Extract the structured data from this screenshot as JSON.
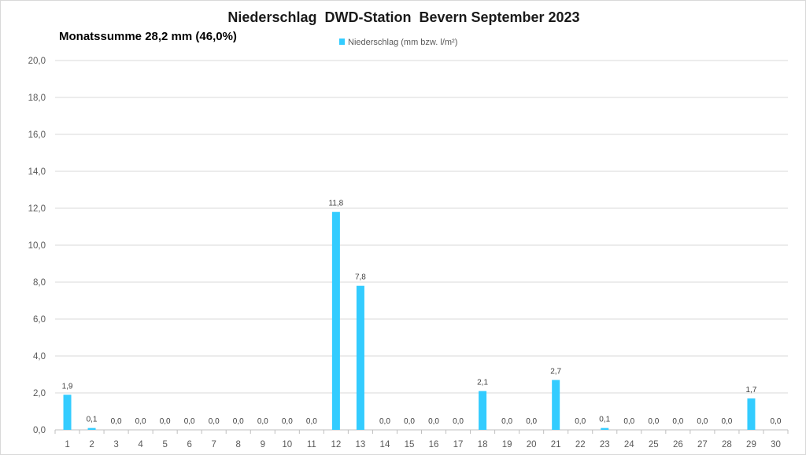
{
  "chart_data": {
    "type": "bar",
    "title": "Niederschlag  DWD-Station  Bevern September 2023",
    "subtitle": "Monatssumme 28,2 mm (46,0%)",
    "legend": {
      "position": "top",
      "entries": [
        "Niederschlag (mm bzw. l/m²)"
      ]
    },
    "series": [
      {
        "name": "Niederschlag (mm bzw. l/m²)",
        "color": "#33ccff",
        "values": [
          1.9,
          0.1,
          0.0,
          0.0,
          0.0,
          0.0,
          0.0,
          0.0,
          0.0,
          0.0,
          0.0,
          11.8,
          7.8,
          0.0,
          0.0,
          0.0,
          0.0,
          2.1,
          0.0,
          0.0,
          2.7,
          0.0,
          0.1,
          0.0,
          0.0,
          0.0,
          0.0,
          0.0,
          1.7,
          0.0
        ]
      }
    ],
    "categories": [
      "1",
      "2",
      "3",
      "4",
      "5",
      "6",
      "7",
      "8",
      "9",
      "10",
      "11",
      "12",
      "13",
      "14",
      "15",
      "16",
      "17",
      "18",
      "19",
      "20",
      "21",
      "22",
      "23",
      "24",
      "25",
      "26",
      "27",
      "28",
      "29",
      "30"
    ],
    "ylim": [
      0,
      20
    ],
    "yticks": [
      "0,0",
      "2,0",
      "4,0",
      "6,0",
      "8,0",
      "10,0",
      "12,0",
      "14,0",
      "16,0",
      "18,0",
      "20,0"
    ],
    "grid": true,
    "xlabel": "",
    "ylabel": ""
  }
}
